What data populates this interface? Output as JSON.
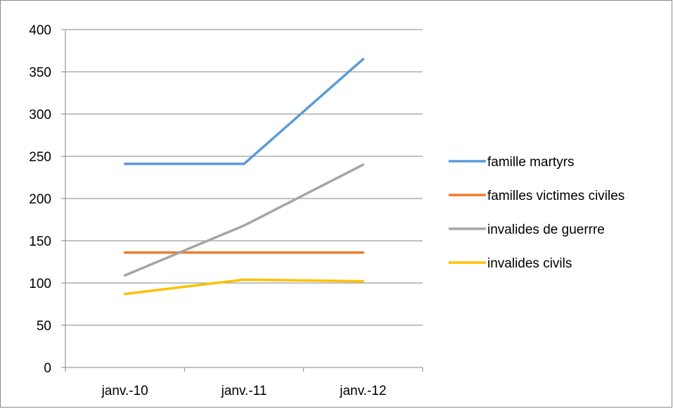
{
  "chart_data": {
    "type": "line",
    "title": "",
    "xlabel": "",
    "ylabel": "",
    "categories": [
      "janv.-10",
      "janv.-11",
      "janv.-12"
    ],
    "ylim": [
      0,
      400
    ],
    "yticks": [
      0,
      50,
      100,
      150,
      200,
      250,
      300,
      350,
      400
    ],
    "grid": true,
    "legend_position": "right",
    "series": [
      {
        "name": "famille martyrs",
        "color": "#5b9bd5",
        "values": [
          241,
          241,
          365
        ]
      },
      {
        "name": "familles victimes civiles",
        "color": "#ed7d31",
        "values": [
          136,
          136,
          136
        ]
      },
      {
        "name": "invalides de guerrre",
        "color": "#a5a5a5",
        "values": [
          109,
          168,
          240
        ]
      },
      {
        "name": "invalides civils",
        "color": "#ffc000",
        "values": [
          87,
          104,
          102
        ]
      }
    ]
  }
}
